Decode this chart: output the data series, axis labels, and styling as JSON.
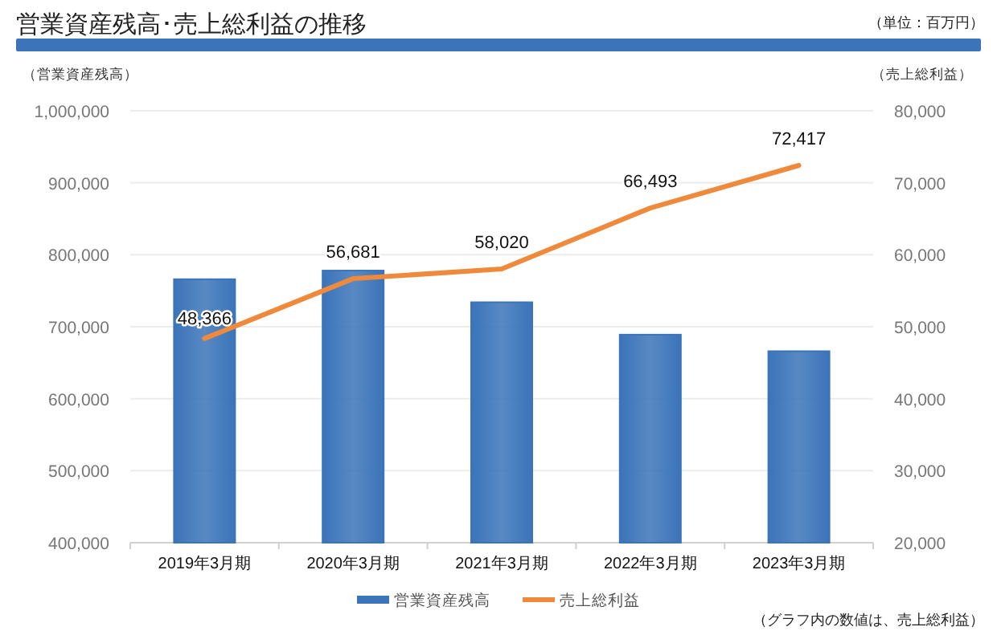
{
  "chart_data": {
    "type": "bar",
    "title": "営業資産残高･売上総利益の推移",
    "ylabel": "（営業資産残高）",
    "y2label": "（売上総利益）",
    "annotations": [
      "（単位：百万円）",
      "（グラフ内の数値は、売上総利益）"
    ],
    "categories": [
      "2019年3月期",
      "2020年3月期",
      "2021年3月期",
      "2022年3月期",
      "2023年3月期"
    ],
    "series": [
      {
        "name": "営業資産残高",
        "color": "#3b74b9",
        "values": [
          766000,
          778000,
          734000,
          689000,
          666000
        ]
      },
      {
        "name": "売上総利益",
        "type": "line",
        "axis": "y2",
        "color": "#ef8a3c",
        "values": [
          48366,
          56681,
          58020,
          66493,
          72417
        ],
        "value_labels": [
          "48,366",
          "56,681",
          "58,020",
          "66,493",
          "72,417"
        ]
      }
    ],
    "ylim": [
      400000,
      1000000
    ],
    "yticks": [
      {
        "value": 400000,
        "label": "400,000"
      },
      {
        "value": 500000,
        "label": "500,000"
      },
      {
        "value": 600000,
        "label": "600,000"
      },
      {
        "value": 700000,
        "label": "700,000"
      },
      {
        "value": 800000,
        "label": "800,000"
      },
      {
        "value": 900000,
        "label": "900,000"
      },
      {
        "value": 1000000,
        "label": "1,000,000"
      }
    ],
    "y2lim": [
      20000,
      80000
    ],
    "y2ticks": [
      {
        "value": 20000,
        "label": "20,000"
      },
      {
        "value": 30000,
        "label": "30,000"
      },
      {
        "value": 40000,
        "label": "40,000"
      },
      {
        "value": 50000,
        "label": "50,000"
      },
      {
        "value": 60000,
        "label": "60,000"
      },
      {
        "value": 70000,
        "label": "70,000"
      },
      {
        "value": 80000,
        "label": "80,000"
      }
    ],
    "grid": "y",
    "legend": "bottom"
  }
}
